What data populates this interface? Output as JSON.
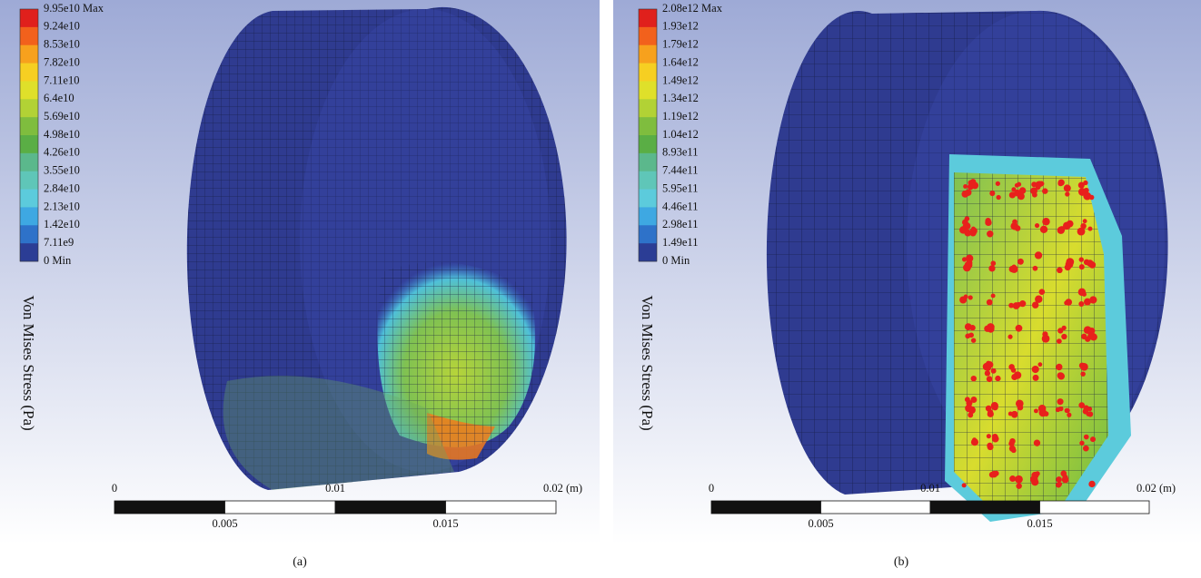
{
  "panels": [
    {
      "legend": {
        "labels": [
          "9.95e10 Max",
          "9.24e10",
          "8.53e10",
          "7.82e10",
          "7.11e10",
          "6.4e10",
          "5.69e10",
          "4.98e10",
          "4.26e10",
          "3.55e10",
          "2.84e10",
          "2.13e10",
          "1.42e10",
          "7.11e9",
          "0 Min"
        ],
        "colors": [
          "#e0201c",
          "#f2611c",
          "#f7a11d",
          "#f6cf22",
          "#dfe02a",
          "#b2d235",
          "#7fbd3e",
          "#5aae45",
          "#5bb88c",
          "#5fc6b8",
          "#5ccbdc",
          "#3ea8e2",
          "#2e72c9",
          "#2b3d95"
        ]
      },
      "axis_label": "Von Mises Stress (Pa)",
      "scale_bar": {
        "top_labels": [
          "0",
          "0.01",
          "0.02 (m)"
        ],
        "bottom_labels": [
          "0.005",
          "0.015"
        ]
      },
      "caption": "(a)"
    },
    {
      "legend": {
        "labels": [
          "2.08e12 Max",
          "1.93e12",
          "1.79e12",
          "1.64e12",
          "1.49e12",
          "1.34e12",
          "1.19e12",
          "1.04e12",
          "8.93e11",
          "7.44e11",
          "5.95e11",
          "4.46e11",
          "2.98e11",
          "1.49e11",
          "0 Min"
        ],
        "colors": [
          "#e0201c",
          "#f2611c",
          "#f7a11d",
          "#f6cf22",
          "#dfe02a",
          "#b2d235",
          "#7fbd3e",
          "#5aae45",
          "#5bb88c",
          "#5fc6b8",
          "#5ccbdc",
          "#3ea8e2",
          "#2e72c9",
          "#2b3d95"
        ]
      },
      "axis_label": "Von Mises Stress (Pa)",
      "scale_bar": {
        "top_labels": [
          "0",
          "0.01",
          "0.02 (m)"
        ],
        "bottom_labels": [
          "0.005",
          "0.015"
        ]
      },
      "caption": "(b)"
    }
  ]
}
